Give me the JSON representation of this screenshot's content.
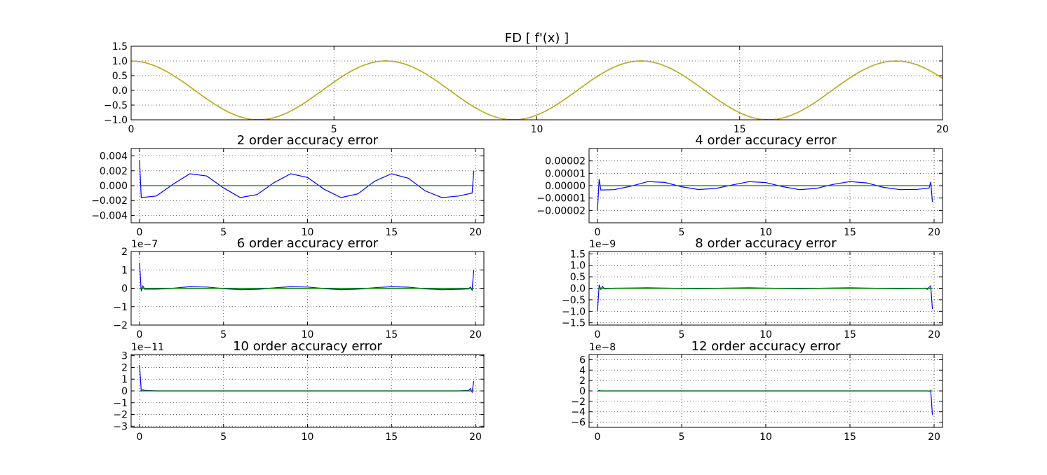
{
  "chart_data": [
    {
      "type": "line",
      "title": "FD [ f'(x) ]",
      "xlabel": "",
      "ylabel": "",
      "xlim": [
        0,
        20
      ],
      "ylim": [
        -1.0,
        1.5
      ],
      "xticks": [
        "0",
        "5",
        "10",
        "15",
        "20"
      ],
      "yticks": [
        "1.5",
        "1.0",
        "0.5",
        "0.0",
        "−0.5",
        "−1.0"
      ],
      "grid": true,
      "offset_label": "",
      "series": [
        {
          "color": "#0000ff",
          "x": [
            0,
            1,
            2,
            3,
            4,
            5,
            6,
            7,
            8,
            9,
            10,
            11,
            12,
            13,
            14,
            15,
            16,
            17,
            18,
            19,
            20
          ],
          "y": [
            1.0,
            0.54,
            -0.416,
            -0.99,
            -0.654,
            0.284,
            0.96,
            0.754,
            -0.146,
            -0.911,
            -0.839,
            0.004,
            0.844,
            0.907,
            0.137,
            -0.76,
            -0.958,
            -0.275,
            0.66,
            0.989,
            0.408
          ]
        },
        {
          "color": "#008000",
          "x": [
            0,
            1,
            2,
            3,
            4,
            5,
            6,
            7,
            8,
            9,
            10,
            11,
            12,
            13,
            14,
            15,
            16,
            17,
            18,
            19,
            20
          ],
          "y": [
            1.0,
            0.54,
            -0.416,
            -0.99,
            -0.654,
            0.284,
            0.96,
            0.754,
            -0.146,
            -0.911,
            -0.839,
            0.004,
            0.844,
            0.907,
            0.137,
            -0.76,
            -0.958,
            -0.275,
            0.66,
            0.989,
            0.408
          ]
        },
        {
          "color": "#ff0000",
          "x": [
            0,
            1,
            2,
            3,
            4,
            5,
            6,
            7,
            8,
            9,
            10,
            11,
            12,
            13,
            14,
            15,
            16,
            17,
            18,
            19,
            20
          ],
          "y": [
            1.0,
            0.54,
            -0.416,
            -0.99,
            -0.654,
            0.284,
            0.96,
            0.754,
            -0.146,
            -0.911,
            -0.839,
            0.004,
            0.844,
            0.907,
            0.137,
            -0.76,
            -0.958,
            -0.275,
            0.66,
            0.989,
            0.408
          ]
        },
        {
          "color": "#bfbf00",
          "x": [
            0,
            1,
            2,
            3,
            4,
            5,
            6,
            7,
            8,
            9,
            10,
            11,
            12,
            13,
            14,
            15,
            16,
            17,
            18,
            19,
            20
          ],
          "y": [
            1.0,
            0.54,
            -0.416,
            -0.99,
            -0.654,
            0.284,
            0.96,
            0.754,
            -0.146,
            -0.911,
            -0.839,
            0.004,
            0.844,
            0.907,
            0.137,
            -0.76,
            -0.958,
            -0.275,
            0.66,
            0.989,
            0.408
          ]
        }
      ]
    },
    {
      "type": "line",
      "title": "2 order accuracy error",
      "xlabel": "",
      "ylabel": "",
      "xlim": [
        -0.5,
        20.5
      ],
      "ylim": [
        -0.005,
        0.005
      ],
      "xticks": [
        "0",
        "5",
        "10",
        "15",
        "20"
      ],
      "yticks": [
        "0.004",
        "0.002",
        "0.000",
        "−0.002",
        "−0.004"
      ],
      "grid": true,
      "offset_label": "",
      "series": [
        {
          "color": "#0000ff",
          "x": [
            0,
            0.1,
            1,
            2,
            3,
            4,
            5,
            6,
            7,
            8,
            9,
            10,
            11,
            12,
            13,
            14,
            15,
            16,
            17,
            18,
            19,
            19.8,
            19.9
          ],
          "y": [
            0.0034,
            -0.0016,
            -0.0014,
            0.0002,
            0.0016,
            0.0013,
            -0.0003,
            -0.0016,
            -0.0012,
            0.0004,
            0.0016,
            0.0011,
            -0.0005,
            -0.0016,
            -0.0011,
            0.0006,
            0.0016,
            0.001,
            -0.0007,
            -0.0016,
            -0.0014,
            -0.001,
            0.002
          ]
        },
        {
          "color": "#008000",
          "x": [
            0,
            19.9
          ],
          "y": [
            0,
            0
          ]
        }
      ]
    },
    {
      "type": "line",
      "title": "4 order accuracy error",
      "xlabel": "",
      "ylabel": "",
      "xlim": [
        -0.5,
        20.5
      ],
      "ylim": [
        -3e-05,
        3e-05
      ],
      "xticks": [
        "0",
        "5",
        "10",
        "15",
        "20"
      ],
      "yticks": [
        "0.00002",
        "0.00001",
        "0.00000",
        "−0.00001",
        "−0.00002"
      ],
      "grid": true,
      "offset_label": "",
      "series": [
        {
          "color": "#0000ff",
          "x": [
            0,
            0.1,
            0.2,
            1,
            2,
            3,
            4,
            5,
            6,
            7,
            8,
            9,
            10,
            11,
            12,
            13,
            14,
            15,
            16,
            17,
            18,
            19,
            19.7,
            19.8,
            19.9
          ],
          "y": [
            -2e-05,
            5.2e-06,
            -3.5e-06,
            -3.2e-06,
            -4e-07,
            3.3e-06,
            2.6e-06,
            -9e-07,
            -3.1e-06,
            -2.3e-06,
            5e-07,
            3.2e-06,
            2.5e-06,
            -8e-07,
            -3.2e-06,
            -2.2e-06,
            1e-06,
            3.3e-06,
            2.2e-06,
            -1.4e-06,
            -3.2e-06,
            -3e-06,
            -2e-06,
            3e-06,
            -1.3e-05
          ]
        },
        {
          "color": "#008000",
          "x": [
            0,
            19.9
          ],
          "y": [
            0,
            0
          ]
        }
      ]
    },
    {
      "type": "line",
      "title": "6 order accuracy error",
      "xlabel": "",
      "ylabel": "",
      "xlim": [
        -0.5,
        20.5
      ],
      "ylim": [
        -2,
        2
      ],
      "xticks": [
        "0",
        "5",
        "10",
        "15",
        "20"
      ],
      "yticks": [
        "2",
        "1",
        "0",
        "−1",
        "−2"
      ],
      "grid": true,
      "offset_label": "1e−7",
      "series": [
        {
          "color": "#0000ff",
          "x": [
            0,
            0.1,
            0.2,
            0.3,
            1,
            2,
            3,
            4,
            5,
            6,
            7,
            8,
            9,
            10,
            11,
            12,
            13,
            14,
            15,
            16,
            17,
            18,
            19,
            19.6,
            19.7,
            19.8,
            19.9
          ],
          "y": [
            1.4,
            -0.15,
            0.12,
            -0.05,
            -0.05,
            0.0,
            0.09,
            0.07,
            -0.02,
            -0.08,
            -0.06,
            0.02,
            0.09,
            0.07,
            -0.02,
            -0.08,
            -0.05,
            0.03,
            0.09,
            0.06,
            -0.03,
            -0.08,
            -0.06,
            -0.03,
            0.06,
            -0.1,
            1.0
          ]
        },
        {
          "color": "#008000",
          "x": [
            0,
            19.9
          ],
          "y": [
            0,
            0
          ]
        }
      ]
    },
    {
      "type": "line",
      "title": "8 order accuracy error",
      "xlabel": "",
      "ylabel": "",
      "xlim": [
        -0.5,
        20.5
      ],
      "ylim": [
        -1.6,
        1.6
      ],
      "xticks": [
        "0",
        "5",
        "10",
        "15",
        "20"
      ],
      "yticks": [
        "1.5",
        "1.0",
        "0.5",
        "0.0",
        "−0.5",
        "−1.0",
        "−1.5"
      ],
      "grid": true,
      "offset_label": "1e−9",
      "series": [
        {
          "color": "#0000ff",
          "x": [
            0,
            0.1,
            0.2,
            0.3,
            0.4,
            1,
            3,
            5,
            6,
            8,
            9,
            11,
            12,
            14,
            15,
            17,
            18,
            19,
            19.5,
            19.6,
            19.7,
            19.8,
            19.9
          ],
          "y": [
            -1.0,
            0.15,
            -0.05,
            0.08,
            -0.02,
            0.0,
            0.02,
            -0.01,
            -0.02,
            0.01,
            0.02,
            -0.01,
            -0.02,
            0.01,
            0.02,
            -0.01,
            -0.02,
            -0.01,
            0.0,
            -0.05,
            0.05,
            0.1,
            -0.9
          ]
        },
        {
          "color": "#008000",
          "x": [
            0,
            19.9
          ],
          "y": [
            0,
            0
          ]
        }
      ]
    },
    {
      "type": "line",
      "title": "10 order accuracy error",
      "xlabel": "",
      "ylabel": "",
      "xlim": [
        -0.5,
        20.5
      ],
      "ylim": [
        -3.1,
        3.1
      ],
      "xticks": [
        "0",
        "5",
        "10",
        "15",
        "20"
      ],
      "yticks": [
        "3",
        "2",
        "1",
        "0",
        "−1",
        "−2",
        "−3"
      ],
      "grid": true,
      "offset_label": "1e−11",
      "series": [
        {
          "color": "#0000ff",
          "x": [
            0,
            0.1,
            0.2,
            0.3,
            1,
            5,
            10,
            15,
            19,
            19.6,
            19.7,
            19.8,
            19.9
          ],
          "y": [
            2.2,
            0.0,
            0.1,
            0.05,
            0.0,
            0.0,
            0.0,
            0.0,
            0.0,
            0.05,
            0.2,
            -0.1,
            0.85
          ]
        },
        {
          "color": "#008000",
          "x": [
            0,
            19.9
          ],
          "y": [
            0,
            0
          ]
        }
      ]
    },
    {
      "type": "line",
      "title": "12 order accuracy error",
      "xlabel": "",
      "ylabel": "",
      "xlim": [
        -0.5,
        20.5
      ],
      "ylim": [
        -7,
        7
      ],
      "xticks": [
        "0",
        "5",
        "10",
        "15",
        "20"
      ],
      "yticks": [
        "6",
        "4",
        "2",
        "0",
        "−2",
        "−4",
        "−6"
      ],
      "grid": true,
      "offset_label": "1e−8",
      "series": [
        {
          "color": "#0000ff",
          "x": [
            0,
            0.1,
            0.2,
            1,
            5,
            10,
            15,
            19,
            19.6,
            19.7,
            19.8,
            19.9
          ],
          "y": [
            -0.1,
            0.1,
            0.0,
            0.0,
            0.0,
            0.0,
            0.0,
            0.0,
            0.0,
            -0.05,
            0.1,
            -4.6
          ]
        },
        {
          "color": "#008000",
          "x": [
            0,
            19.9
          ],
          "y": [
            0,
            0
          ]
        }
      ]
    }
  ]
}
